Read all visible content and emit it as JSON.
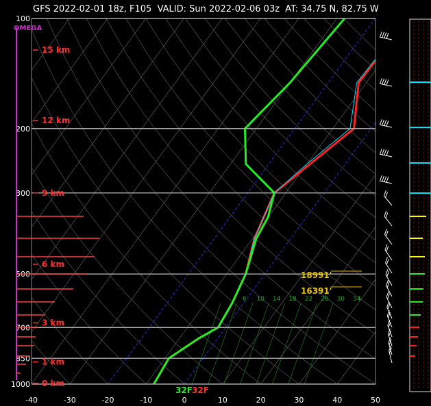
{
  "title": "GFS 2022-02-01 18z, F105  VALID: Sun 2022-02-06 03z  AT: 34.75 N, 82.75 W",
  "chart_data": {
    "type": "line",
    "title": "GFS 2022-02-01 18z, F105  VALID: Sun 2022-02-06 03z  AT: 34.75 N, 82.75 W",
    "omega_label": "OMEGA",
    "x_ticks": [
      -40,
      -30,
      -20,
      -10,
      0,
      10,
      20,
      30,
      40,
      50
    ],
    "xlim": [
      -40,
      50
    ],
    "y_ticks": [
      {
        "p": 100,
        "label": "100"
      },
      {
        "p": 200,
        "label": "200"
      },
      {
        "p": 300,
        "label": "300"
      },
      {
        "p": 500,
        "label": "500"
      },
      {
        "p": 700,
        "label": "700"
      },
      {
        "p": 850,
        "label": "850"
      },
      {
        "p": 1000,
        "label": "1000"
      }
    ],
    "ylim": [
      1000,
      100
    ],
    "y_scale": "log",
    "height_labels": [
      {
        "p": 122,
        "label": "15 km"
      },
      {
        "p": 190,
        "label": "12 km"
      },
      {
        "p": 300,
        "label": "9 km"
      },
      {
        "p": 470,
        "label": "6 km"
      },
      {
        "p": 680,
        "label": "3 km"
      },
      {
        "p": 870,
        "label": "1 km"
      },
      {
        "p": 995,
        "label": "0 km"
      }
    ],
    "series": [
      {
        "color": "#ff2020",
        "points": [
          [
            100,
            -11.5
          ],
          [
            150,
            -12
          ],
          [
            200,
            -4.5
          ],
          [
            300,
            -13
          ],
          [
            400,
            -9.5
          ],
          [
            500,
            -5
          ],
          [
            600,
            -3
          ],
          [
            700,
            -2
          ],
          [
            750,
            -5
          ],
          [
            850,
            -9
          ],
          [
            1000,
            -8
          ]
        ]
      },
      {
        "color": "#00e5ff",
        "points": [
          [
            100,
            -11.5
          ],
          [
            150,
            -12.5
          ],
          [
            200,
            -5.5
          ],
          [
            250,
            -10
          ],
          [
            300,
            -13
          ],
          [
            400,
            -9.5
          ],
          [
            500,
            -5
          ],
          [
            600,
            -3
          ],
          [
            700,
            -2
          ],
          [
            750,
            -5
          ],
          [
            850,
            -9
          ],
          [
            1000,
            -8
          ]
        ]
      },
      {
        "color": "#22ee22",
        "points": [
          [
            100,
            -28
          ],
          [
            150,
            -30
          ],
          [
            200,
            -33
          ],
          [
            250,
            -26
          ],
          [
            300,
            -13
          ],
          [
            350,
            -10
          ],
          [
            400,
            -9
          ],
          [
            500,
            -5
          ],
          [
            600,
            -3
          ],
          [
            700,
            -2
          ],
          [
            750,
            -5
          ],
          [
            850,
            -9
          ],
          [
            1000,
            -8
          ]
        ]
      }
    ],
    "freezing_labels": [
      "32F",
      "32F"
    ],
    "levels": [
      {
        "p": 530,
        "label": "18991'"
      },
      {
        "p": 580,
        "label": "16391'"
      }
    ],
    "mixing_ratio_labels": [
      "6",
      "10",
      "14",
      "18",
      "22",
      "26",
      "30",
      "34"
    ]
  }
}
